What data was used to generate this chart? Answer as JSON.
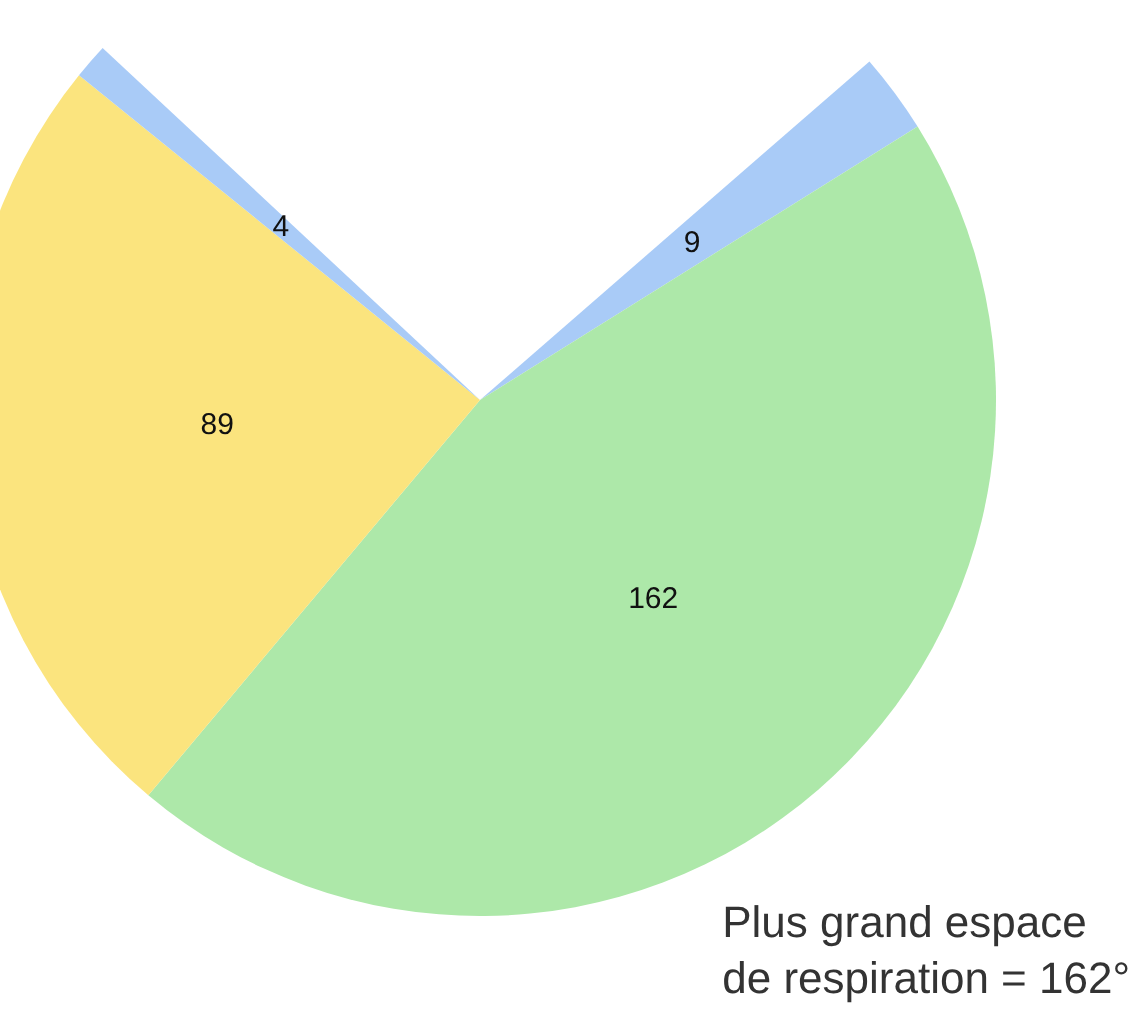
{
  "chart_data": {
    "type": "pie",
    "categories": [
      null,
      null,
      null,
      null
    ],
    "values": [
      9,
      162,
      89,
      4
    ],
    "colors": [
      "#a9cbf7",
      "#ade8a9",
      "#fbe47e",
      "#a9cbf7"
    ],
    "value_labels": [
      "9",
      "162",
      "89",
      "4"
    ],
    "annotations": [
      "Plus grand espace de respiration = 162°"
    ]
  }
}
